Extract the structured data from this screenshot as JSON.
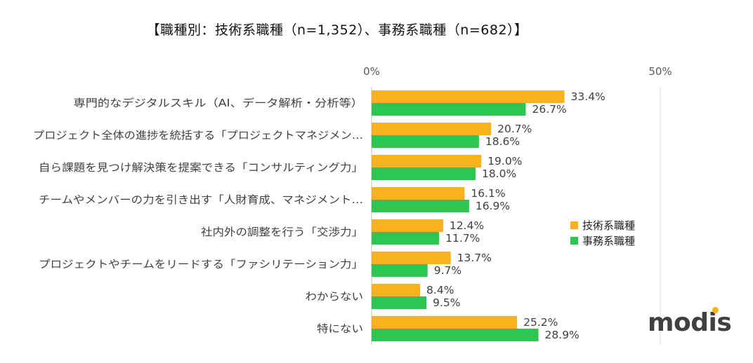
{
  "chart_data": {
    "type": "bar",
    "orientation": "horizontal",
    "title": "【職種別：技術系職種（n=1,352）、事務系職種（n=682）】",
    "categories": [
      "専門的なデジタルスキル（AI、データ解析・分析等）",
      "プロジェクト全体の進捗を統括する「プロジェクトマネジメン…",
      "自ら課題を見つけ解決策を提案できる「コンサルティング力」",
      "チームやメンバーの力を引き出す「人財育成、マネジメント…",
      "社内外の調整を行う「交渉力」",
      "プロジェクトやチームをリードする「ファシリテーション力」",
      "わからない",
      "特にない"
    ],
    "series": [
      {
        "name": "技術系職種",
        "color": "#F9B21E",
        "values": [
          33.4,
          20.7,
          19.0,
          16.1,
          12.4,
          13.7,
          8.4,
          25.2
        ],
        "labels": [
          "33.4%",
          "20.7%",
          "19.0%",
          "16.1%",
          "12.4%",
          "13.7%",
          "8.4%",
          "25.2%"
        ]
      },
      {
        "name": "事務系職種",
        "color": "#2DC653",
        "values": [
          26.7,
          18.6,
          18.0,
          16.9,
          11.7,
          9.7,
          9.5,
          28.9
        ],
        "labels": [
          "26.7%",
          "18.6%",
          "18.0%",
          "16.9%",
          "11.7%",
          "9.7%",
          "9.5%",
          "28.9%"
        ]
      }
    ],
    "xlim": [
      0,
      50
    ],
    "x_ticks": [
      "0%",
      "50%"
    ],
    "legend_position": "right"
  },
  "logo": {
    "text": "modis",
    "accent_color": "#F9B21E"
  }
}
